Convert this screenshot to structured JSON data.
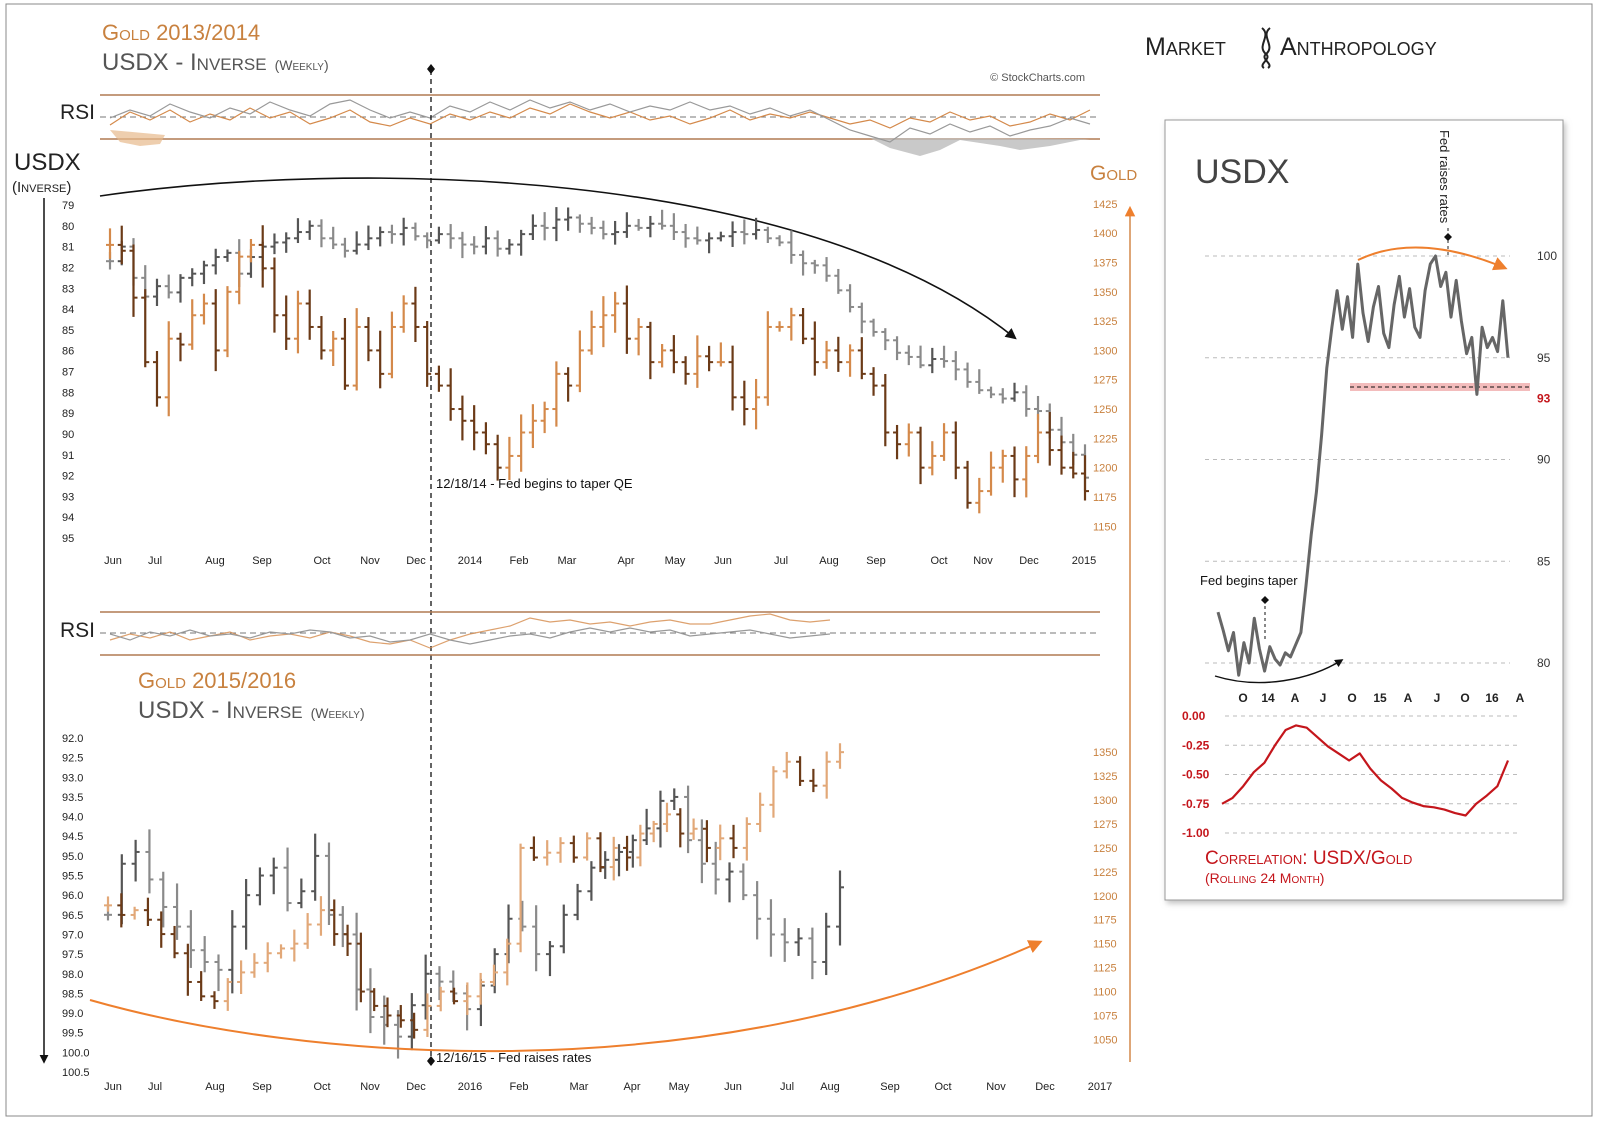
{
  "brand": {
    "left": "Market",
    "right": "Anthropology"
  },
  "watermark": "© StockCharts.com",
  "colors": {
    "gold": "#d4894a",
    "gold_dark": "#6b3a17",
    "usd": "#8a8a8a",
    "usd_dark": "#555555",
    "red": "#c4161c",
    "frame": "#b07a52",
    "arrow_orange": "#ee7f2d"
  },
  "panel1": {
    "title_gold": "Gold 2013/2014",
    "title_usd": "USDX - Inverse",
    "title_weekly": "(Weekly)",
    "rsi_label": "RSI",
    "usdx_label": "USDX",
    "usdx_sub": "(Inverse)",
    "gold_label": "Gold",
    "annotation": "12/18/14 - Fed begins to taper QE",
    "x_ticks": [
      "Jun",
      "Jul",
      "Aug",
      "Sep",
      "Oct",
      "Nov",
      "Dec",
      "2014",
      "Feb",
      "Mar",
      "Apr",
      "May",
      "Jun",
      "Jul",
      "Aug",
      "Sep",
      "Oct",
      "Nov",
      "Dec",
      "2015"
    ],
    "left_ticks": [
      "79",
      "80",
      "81",
      "82",
      "83",
      "84",
      "85",
      "86",
      "87",
      "88",
      "89",
      "90",
      "91",
      "92",
      "93",
      "94",
      "95"
    ],
    "right_ticks": [
      "1425",
      "1400",
      "1375",
      "1350",
      "1325",
      "1300",
      "1275",
      "1250",
      "1225",
      "1200",
      "1175",
      "1150"
    ]
  },
  "panel2": {
    "title_gold": "Gold 2015/2016",
    "title_usd": "USDX - Inverse",
    "title_weekly": "(Weekly)",
    "rsi_label": "RSI",
    "annotation": "12/16/15 - Fed raises rates",
    "x_ticks": [
      "Jun",
      "Jul",
      "Aug",
      "Sep",
      "Oct",
      "Nov",
      "Dec",
      "2016",
      "Feb",
      "Mar",
      "Apr",
      "May",
      "Jun",
      "Jul",
      "Aug",
      "Sep",
      "Oct",
      "Nov",
      "Dec",
      "2017"
    ],
    "left_ticks": [
      "92.0",
      "92.5",
      "93.0",
      "93.5",
      "94.0",
      "94.5",
      "95.0",
      "95.5",
      "96.0",
      "96.5",
      "97.0",
      "97.5",
      "98.0",
      "98.5",
      "99.0",
      "99.5",
      "100.0",
      "100.5"
    ],
    "right_ticks": [
      "1350",
      "1325",
      "1300",
      "1275",
      "1250",
      "1225",
      "1200",
      "1175",
      "1150",
      "1125",
      "1100",
      "1075",
      "1050"
    ]
  },
  "side": {
    "title": "USDX",
    "fed_raises": "Fed raises rates",
    "fed_taper": "Fed begins taper",
    "y_ticks": [
      "100",
      "95",
      "93",
      "90",
      "85",
      "80"
    ],
    "x_ticks": [
      "O",
      "14",
      "A",
      "J",
      "O",
      "15",
      "A",
      "J",
      "O",
      "16",
      "A"
    ],
    "corr_ticks": [
      "0.00",
      "-0.25",
      "-0.50",
      "-0.75",
      "-1.00"
    ],
    "corr_title": "Correlation: USDX/Gold",
    "corr_sub": "(Rolling 24 Month)"
  },
  "chart_data": [
    {
      "type": "ohlc",
      "title": "Gold 2013/2014 vs USDX - Inverse (Weekly)",
      "x_range": [
        "2013-06",
        "2015-01"
      ],
      "series": [
        {
          "name": "Gold",
          "axis": "right",
          "ylim": [
            1140,
            1430
          ],
          "closes": [
            1390,
            1385,
            1345,
            1290,
            1260,
            1310,
            1305,
            1330,
            1340,
            1300,
            1350,
            1380,
            1390,
            1370,
            1330,
            1310,
            1340,
            1320,
            1300,
            1310,
            1270,
            1320,
            1300,
            1280,
            1320,
            1340,
            1320,
            1280,
            1270,
            1250,
            1240,
            1230,
            1220,
            1200,
            1210,
            1230,
            1240,
            1250,
            1280,
            1270,
            1300,
            1320,
            1330,
            1340,
            1310,
            1320,
            1290,
            1300,
            1290,
            1280,
            1295,
            1290,
            1290,
            1260,
            1250,
            1260,
            1320,
            1320,
            1330,
            1310,
            1290,
            1300,
            1290,
            1300,
            1280,
            1270,
            1230,
            1220,
            1230,
            1200,
            1210,
            1230,
            1200,
            1170,
            1180,
            1200,
            1210,
            1190,
            1210,
            1230,
            1215,
            1200,
            1195,
            1180
          ]
        },
        {
          "name": "USDX",
          "axis": "left",
          "inverted": true,
          "ylim": [
            79,
            95
          ],
          "closes": [
            81.7,
            81.0,
            82.5,
            83.4,
            82.9,
            83.2,
            82.5,
            82.3,
            81.9,
            81.5,
            81.3,
            82.3,
            81.5,
            81.0,
            80.8,
            80.6,
            80.3,
            80.0,
            80.6,
            80.9,
            81.2,
            80.9,
            80.6,
            80.3,
            80.4,
            80.1,
            80.5,
            80.7,
            80.4,
            80.6,
            80.9,
            81.0,
            80.6,
            81.1,
            80.9,
            80.4,
            80.0,
            80.1,
            79.7,
            79.6,
            79.9,
            80.1,
            80.4,
            80.3,
            80.0,
            80.1,
            79.9,
            80.0,
            80.3,
            80.6,
            80.7,
            80.6,
            80.5,
            80.3,
            80.4,
            80.2,
            80.6,
            80.8,
            81.4,
            81.8,
            81.9,
            82.4,
            83.1,
            83.9,
            84.6,
            85.1,
            85.5,
            86.1,
            86.3,
            86.7,
            86.4,
            86.5,
            86.9,
            87.5,
            87.9,
            88.1,
            88.3,
            88.0,
            88.8,
            88.9,
            89.8,
            90.4,
            91.0,
            92.1
          ]
        }
      ],
      "annotations": [
        "12/18/14 - Fed begins to taper QE"
      ]
    },
    {
      "type": "ohlc",
      "title": "Gold 2015/2016 vs USDX - Inverse (Weekly)",
      "x_range": [
        "2015-06",
        "2017-01"
      ],
      "series": [
        {
          "name": "Gold",
          "axis": "right",
          "ylim": [
            1040,
            1370
          ],
          "closes": [
            1190,
            1180,
            1185,
            1175,
            1160,
            1140,
            1110,
            1095,
            1090,
            1110,
            1120,
            1130,
            1140,
            1145,
            1150,
            1170,
            1185,
            1160,
            1150,
            1100,
            1085,
            1075,
            1070,
            1060,
            1085,
            1100,
            1090,
            1095,
            1110,
            1120,
            1150,
            1250,
            1240,
            1245,
            1255,
            1240,
            1260,
            1230,
            1250,
            1240,
            1265,
            1275,
            1285,
            1265,
            1270,
            1250,
            1260,
            1250,
            1275,
            1295,
            1330,
            1340,
            1320,
            1315,
            1340,
            1350
          ]
        },
        {
          "name": "USDX",
          "axis": "left",
          "inverted": true,
          "ylim": [
            92,
            100.5
          ],
          "closes": [
            96.5,
            95.2,
            94.9,
            95.6,
            96.3,
            96.8,
            97.4,
            97.7,
            97.9,
            96.8,
            96.0,
            95.5,
            95.3,
            96.2,
            95.9,
            95.0,
            96.5,
            97.0,
            98.4,
            99.1,
            99.3,
            99.6,
            98.8,
            98.0,
            98.2,
            98.5,
            98.9,
            98.3,
            97.5,
            96.6,
            96.8,
            97.5,
            97.3,
            96.5,
            95.9,
            95.3,
            95.1,
            94.9,
            94.6,
            94.3,
            93.6,
            93.5,
            94.6,
            95.2,
            95.6,
            95.4,
            96.0,
            96.6,
            97.0,
            97.2,
            97.1,
            97.7,
            96.8,
            95.8
          ]
        }
      ],
      "annotations": [
        "12/16/15 - Fed raises rates"
      ]
    },
    {
      "type": "line",
      "title": "USDX",
      "x_ticks": [
        "O",
        "14",
        "A",
        "J",
        "O",
        "15",
        "A",
        "J",
        "O",
        "16",
        "A"
      ],
      "ylim": [
        78.5,
        101
      ],
      "values": [
        82.5,
        81.6,
        80.6,
        81.5,
        79.4,
        81.0,
        80.0,
        82.2,
        80.7,
        79.6,
        80.8,
        80.2,
        79.9,
        80.5,
        80.3,
        80.9,
        81.5,
        83.8,
        86.3,
        88.4,
        91.2,
        94.5,
        96.5,
        98.3,
        96.4,
        98.0,
        96.0,
        99.6,
        97.2,
        95.8,
        97.5,
        98.5,
        96.2,
        95.5,
        97.6,
        99.0,
        97.0,
        98.4,
        96.5,
        96.0,
        98.3,
        99.6,
        100.0,
        98.5,
        99.2,
        97.0,
        98.8,
        96.8,
        95.2,
        96.0,
        93.2,
        96.5,
        95.5,
        96.0,
        95.3,
        97.8,
        95.0
      ]
    },
    {
      "type": "line",
      "title": "Correlation: USDX/Gold (Rolling 24 Month)",
      "ylim": [
        -1.0,
        0.0
      ],
      "values": [
        -0.75,
        -0.7,
        -0.6,
        -0.48,
        -0.4,
        -0.25,
        -0.12,
        -0.08,
        -0.1,
        -0.18,
        -0.26,
        -0.32,
        -0.38,
        -0.32,
        -0.45,
        -0.55,
        -0.62,
        -0.7,
        -0.74,
        -0.77,
        -0.78,
        -0.8,
        -0.83,
        -0.85,
        -0.75,
        -0.68,
        -0.6,
        -0.38
      ]
    }
  ]
}
